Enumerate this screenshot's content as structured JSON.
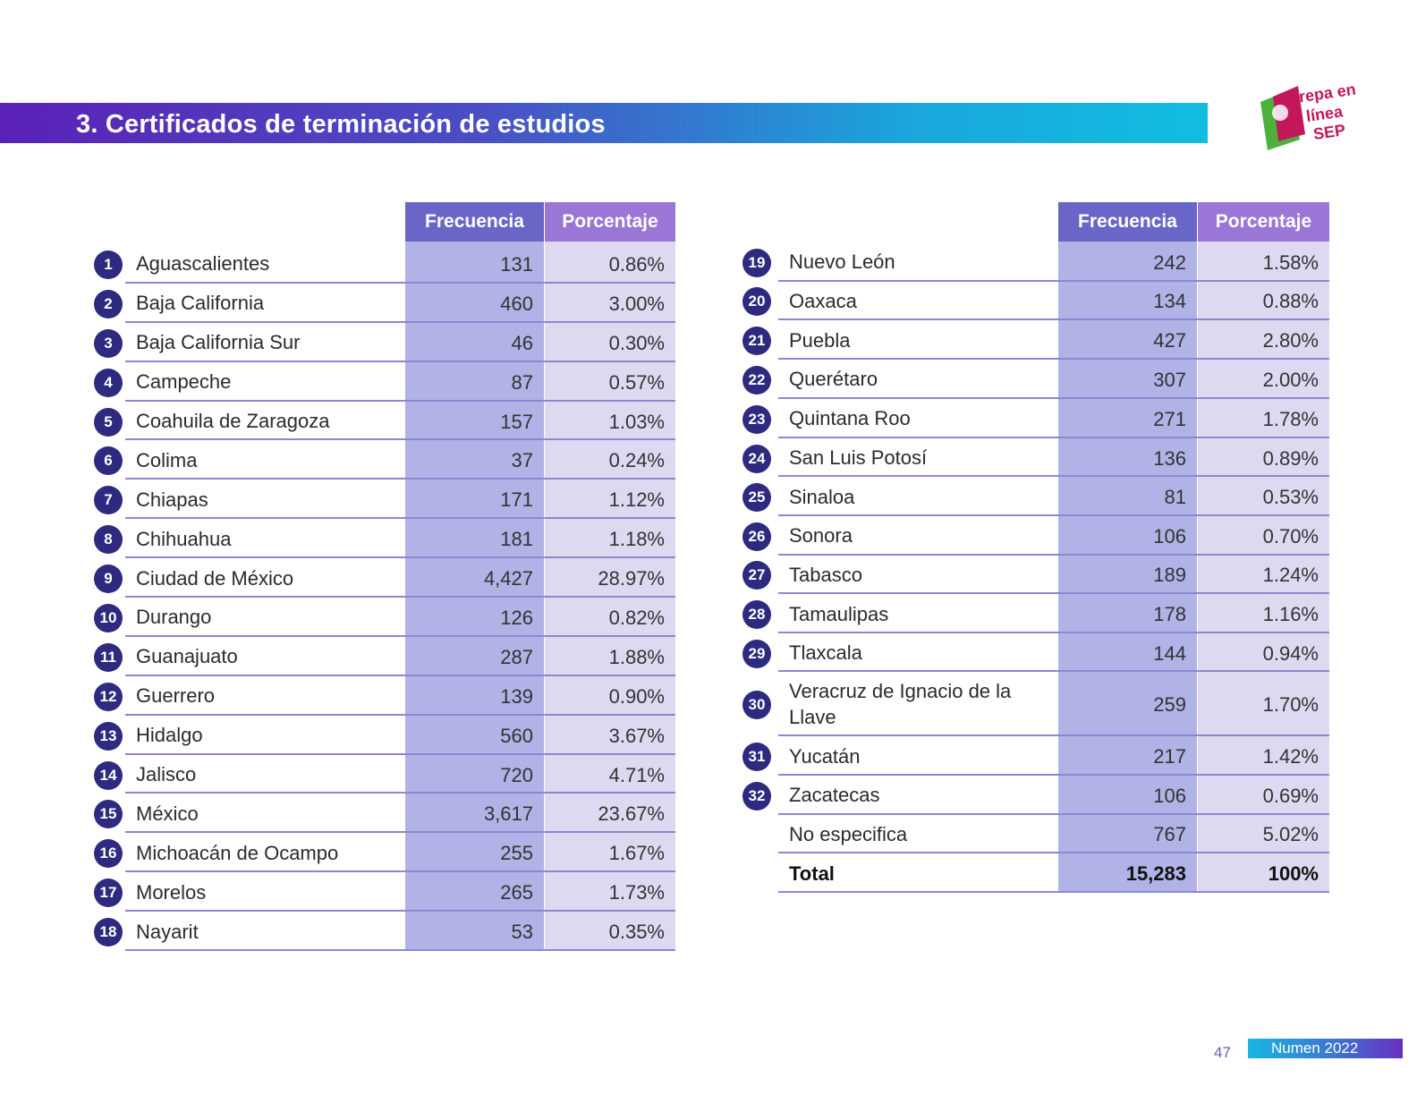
{
  "header": {
    "title": "3. Certificados de terminación de estudios"
  },
  "logo": {
    "text_line1": "Prepa en",
    "text_line2": "línea",
    "text_line3": "SEP"
  },
  "columns": {
    "frequency": "Frecuencia",
    "percentage": "Porcentaje"
  },
  "left_table": [
    {
      "n": "1",
      "state": "Aguascalientes",
      "freq": "131",
      "pct": "0.86%"
    },
    {
      "n": "2",
      "state": "Baja California",
      "freq": "460",
      "pct": "3.00%"
    },
    {
      "n": "3",
      "state": "Baja California Sur",
      "freq": "46",
      "pct": "0.30%"
    },
    {
      "n": "4",
      "state": "Campeche",
      "freq": "87",
      "pct": "0.57%"
    },
    {
      "n": "5",
      "state": "Coahuila de Zaragoza",
      "freq": "157",
      "pct": "1.03%"
    },
    {
      "n": "6",
      "state": "Colima",
      "freq": "37",
      "pct": "0.24%"
    },
    {
      "n": "7",
      "state": "Chiapas",
      "freq": "171",
      "pct": "1.12%"
    },
    {
      "n": "8",
      "state": "Chihuahua",
      "freq": "181",
      "pct": "1.18%"
    },
    {
      "n": "9",
      "state": "Ciudad de México",
      "freq": "4,427",
      "pct": "28.97%"
    },
    {
      "n": "10",
      "state": "Durango",
      "freq": "126",
      "pct": "0.82%"
    },
    {
      "n": "11",
      "state": "Guanajuato",
      "freq": "287",
      "pct": "1.88%"
    },
    {
      "n": "12",
      "state": "Guerrero",
      "freq": "139",
      "pct": "0.90%"
    },
    {
      "n": "13",
      "state": "Hidalgo",
      "freq": "560",
      "pct": "3.67%"
    },
    {
      "n": "14",
      "state": "Jalisco",
      "freq": "720",
      "pct": "4.71%"
    },
    {
      "n": "15",
      "state": "México",
      "freq": "3,617",
      "pct": "23.67%"
    },
    {
      "n": "16",
      "state": "Michoacán de Ocampo",
      "freq": "255",
      "pct": "1.67%"
    },
    {
      "n": "17",
      "state": "Morelos",
      "freq": "265",
      "pct": "1.73%"
    },
    {
      "n": "18",
      "state": "Nayarit",
      "freq": "53",
      "pct": "0.35%"
    }
  ],
  "right_table": [
    {
      "n": "19",
      "state": "Nuevo León",
      "freq": "242",
      "pct": "1.58%"
    },
    {
      "n": "20",
      "state": "Oaxaca",
      "freq": "134",
      "pct": "0.88%"
    },
    {
      "n": "21",
      "state": "Puebla",
      "freq": "427",
      "pct": "2.80%"
    },
    {
      "n": "22",
      "state": "Querétaro",
      "freq": "307",
      "pct": "2.00%"
    },
    {
      "n": "23",
      "state": "Quintana Roo",
      "freq": "271",
      "pct": "1.78%"
    },
    {
      "n": "24",
      "state": "San Luis Potosí",
      "freq": "136",
      "pct": "0.89%"
    },
    {
      "n": "25",
      "state": "Sinaloa",
      "freq": "81",
      "pct": "0.53%"
    },
    {
      "n": "26",
      "state": "Sonora",
      "freq": "106",
      "pct": "0.70%"
    },
    {
      "n": "27",
      "state": "Tabasco",
      "freq": "189",
      "pct": "1.24%"
    },
    {
      "n": "28",
      "state": "Tamaulipas",
      "freq": "178",
      "pct": "1.16%"
    },
    {
      "n": "29",
      "state": "Tlaxcala",
      "freq": "144",
      "pct": "0.94%"
    },
    {
      "n": "30",
      "state": "Veracruz de Ignacio de la Llave",
      "freq": "259",
      "pct": "1.70%"
    },
    {
      "n": "31",
      "state": "Yucatán",
      "freq": "217",
      "pct": "1.42%"
    },
    {
      "n": "32",
      "state": "Zacatecas",
      "freq": "106",
      "pct": "0.69%"
    },
    {
      "n": "",
      "state": "No especifica",
      "freq": "767",
      "pct": "5.02%"
    },
    {
      "n": "",
      "state": "Total",
      "freq": "15,283",
      "pct": "100%",
      "bold": true
    }
  ],
  "footer": {
    "page": "47",
    "publication": "Numen 2022"
  }
}
